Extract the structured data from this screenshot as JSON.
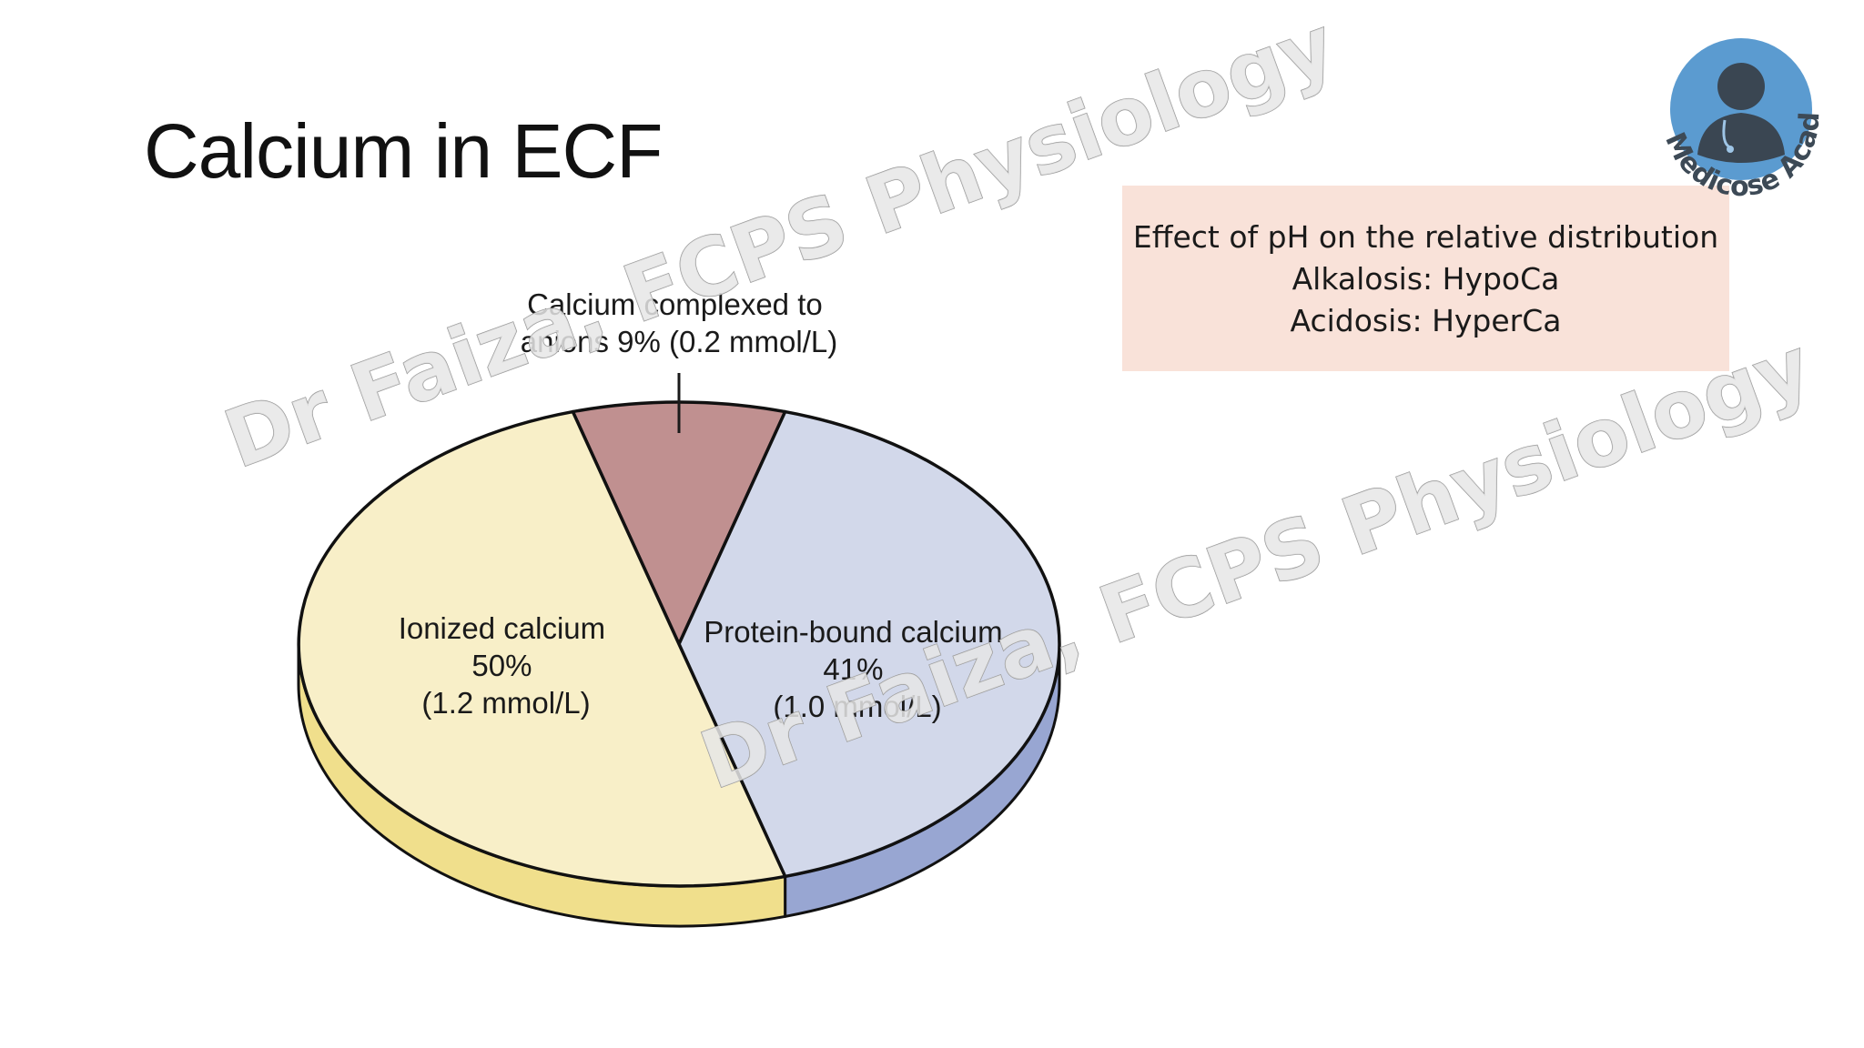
{
  "slide": {
    "title": "Calcium in ECF"
  },
  "note": {
    "lines": [
      "Effect of pH on the relative distribution",
      "Alkalosis: HypoCa",
      "Acidosis: HyperCa"
    ],
    "background_color": "#f9e2d9"
  },
  "chart_data": {
    "type": "pie",
    "title": "",
    "slices": [
      {
        "name": "Calcium complexed to anions",
        "percent": 9,
        "value_mmol_per_L": 0.2,
        "label_lines": [
          "Calcium complexed to",
          "anions 9% (0.2 mmol/L)"
        ],
        "top_color": "#c09090",
        "side_color": "#a87878"
      },
      {
        "name": "Protein-bound calcium",
        "percent": 41,
        "value_mmol_per_L": 1.0,
        "label_lines": [
          "Protein-bound calcium",
          "41%",
          "(1.0 mmol/L)"
        ],
        "top_color": "#d2d8ea",
        "side_color": "#98a6d2"
      },
      {
        "name": "Ionized calcium",
        "percent": 50,
        "value_mmol_per_L": 1.2,
        "label_lines": [
          "Ionized calcium",
          "50%",
          "(1.2 mmol/L)"
        ],
        "top_color": "#f8efc8",
        "side_color": "#f0df8c"
      }
    ],
    "style": "3d"
  },
  "watermark": {
    "text": "Dr Faiza, FCPS Physiology"
  },
  "logo": {
    "text": "Medicose Academics",
    "icon": "doctor-avatar-icon",
    "circle_color": "#5b9bd0"
  }
}
